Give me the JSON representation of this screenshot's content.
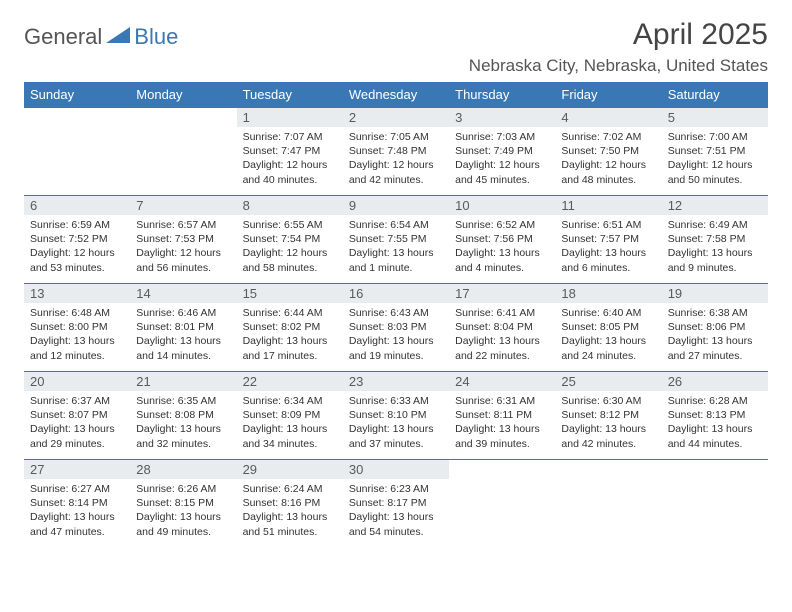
{
  "brand": {
    "general": "General",
    "blue": "Blue"
  },
  "title": "April 2025",
  "location": "Nebraska City, Nebraska, United States",
  "colors": {
    "accent": "#3a78b5",
    "header_row_bg": "#3a78b5",
    "header_row_text": "#ffffff",
    "daynum_bg": "#e9ecef",
    "text": "#333333",
    "rule": "#3a78b5"
  },
  "weekdays": [
    "Sunday",
    "Monday",
    "Tuesday",
    "Wednesday",
    "Thursday",
    "Friday",
    "Saturday"
  ],
  "leading_blanks": 2,
  "days": [
    {
      "n": 1,
      "sunrise": "7:07 AM",
      "sunset": "7:47 PM",
      "daylight": "12 hours and 40 minutes."
    },
    {
      "n": 2,
      "sunrise": "7:05 AM",
      "sunset": "7:48 PM",
      "daylight": "12 hours and 42 minutes."
    },
    {
      "n": 3,
      "sunrise": "7:03 AM",
      "sunset": "7:49 PM",
      "daylight": "12 hours and 45 minutes."
    },
    {
      "n": 4,
      "sunrise": "7:02 AM",
      "sunset": "7:50 PM",
      "daylight": "12 hours and 48 minutes."
    },
    {
      "n": 5,
      "sunrise": "7:00 AM",
      "sunset": "7:51 PM",
      "daylight": "12 hours and 50 minutes."
    },
    {
      "n": 6,
      "sunrise": "6:59 AM",
      "sunset": "7:52 PM",
      "daylight": "12 hours and 53 minutes."
    },
    {
      "n": 7,
      "sunrise": "6:57 AM",
      "sunset": "7:53 PM",
      "daylight": "12 hours and 56 minutes."
    },
    {
      "n": 8,
      "sunrise": "6:55 AM",
      "sunset": "7:54 PM",
      "daylight": "12 hours and 58 minutes."
    },
    {
      "n": 9,
      "sunrise": "6:54 AM",
      "sunset": "7:55 PM",
      "daylight": "13 hours and 1 minute."
    },
    {
      "n": 10,
      "sunrise": "6:52 AM",
      "sunset": "7:56 PM",
      "daylight": "13 hours and 4 minutes."
    },
    {
      "n": 11,
      "sunrise": "6:51 AM",
      "sunset": "7:57 PM",
      "daylight": "13 hours and 6 minutes."
    },
    {
      "n": 12,
      "sunrise": "6:49 AM",
      "sunset": "7:58 PM",
      "daylight": "13 hours and 9 minutes."
    },
    {
      "n": 13,
      "sunrise": "6:48 AM",
      "sunset": "8:00 PM",
      "daylight": "13 hours and 12 minutes."
    },
    {
      "n": 14,
      "sunrise": "6:46 AM",
      "sunset": "8:01 PM",
      "daylight": "13 hours and 14 minutes."
    },
    {
      "n": 15,
      "sunrise": "6:44 AM",
      "sunset": "8:02 PM",
      "daylight": "13 hours and 17 minutes."
    },
    {
      "n": 16,
      "sunrise": "6:43 AM",
      "sunset": "8:03 PM",
      "daylight": "13 hours and 19 minutes."
    },
    {
      "n": 17,
      "sunrise": "6:41 AM",
      "sunset": "8:04 PM",
      "daylight": "13 hours and 22 minutes."
    },
    {
      "n": 18,
      "sunrise": "6:40 AM",
      "sunset": "8:05 PM",
      "daylight": "13 hours and 24 minutes."
    },
    {
      "n": 19,
      "sunrise": "6:38 AM",
      "sunset": "8:06 PM",
      "daylight": "13 hours and 27 minutes."
    },
    {
      "n": 20,
      "sunrise": "6:37 AM",
      "sunset": "8:07 PM",
      "daylight": "13 hours and 29 minutes."
    },
    {
      "n": 21,
      "sunrise": "6:35 AM",
      "sunset": "8:08 PM",
      "daylight": "13 hours and 32 minutes."
    },
    {
      "n": 22,
      "sunrise": "6:34 AM",
      "sunset": "8:09 PM",
      "daylight": "13 hours and 34 minutes."
    },
    {
      "n": 23,
      "sunrise": "6:33 AM",
      "sunset": "8:10 PM",
      "daylight": "13 hours and 37 minutes."
    },
    {
      "n": 24,
      "sunrise": "6:31 AM",
      "sunset": "8:11 PM",
      "daylight": "13 hours and 39 minutes."
    },
    {
      "n": 25,
      "sunrise": "6:30 AM",
      "sunset": "8:12 PM",
      "daylight": "13 hours and 42 minutes."
    },
    {
      "n": 26,
      "sunrise": "6:28 AM",
      "sunset": "8:13 PM",
      "daylight": "13 hours and 44 minutes."
    },
    {
      "n": 27,
      "sunrise": "6:27 AM",
      "sunset": "8:14 PM",
      "daylight": "13 hours and 47 minutes."
    },
    {
      "n": 28,
      "sunrise": "6:26 AM",
      "sunset": "8:15 PM",
      "daylight": "13 hours and 49 minutes."
    },
    {
      "n": 29,
      "sunrise": "6:24 AM",
      "sunset": "8:16 PM",
      "daylight": "13 hours and 51 minutes."
    },
    {
      "n": 30,
      "sunrise": "6:23 AM",
      "sunset": "8:17 PM",
      "daylight": "13 hours and 54 minutes."
    }
  ],
  "labels": {
    "sunrise": "Sunrise:",
    "sunset": "Sunset:",
    "daylight": "Daylight:"
  }
}
